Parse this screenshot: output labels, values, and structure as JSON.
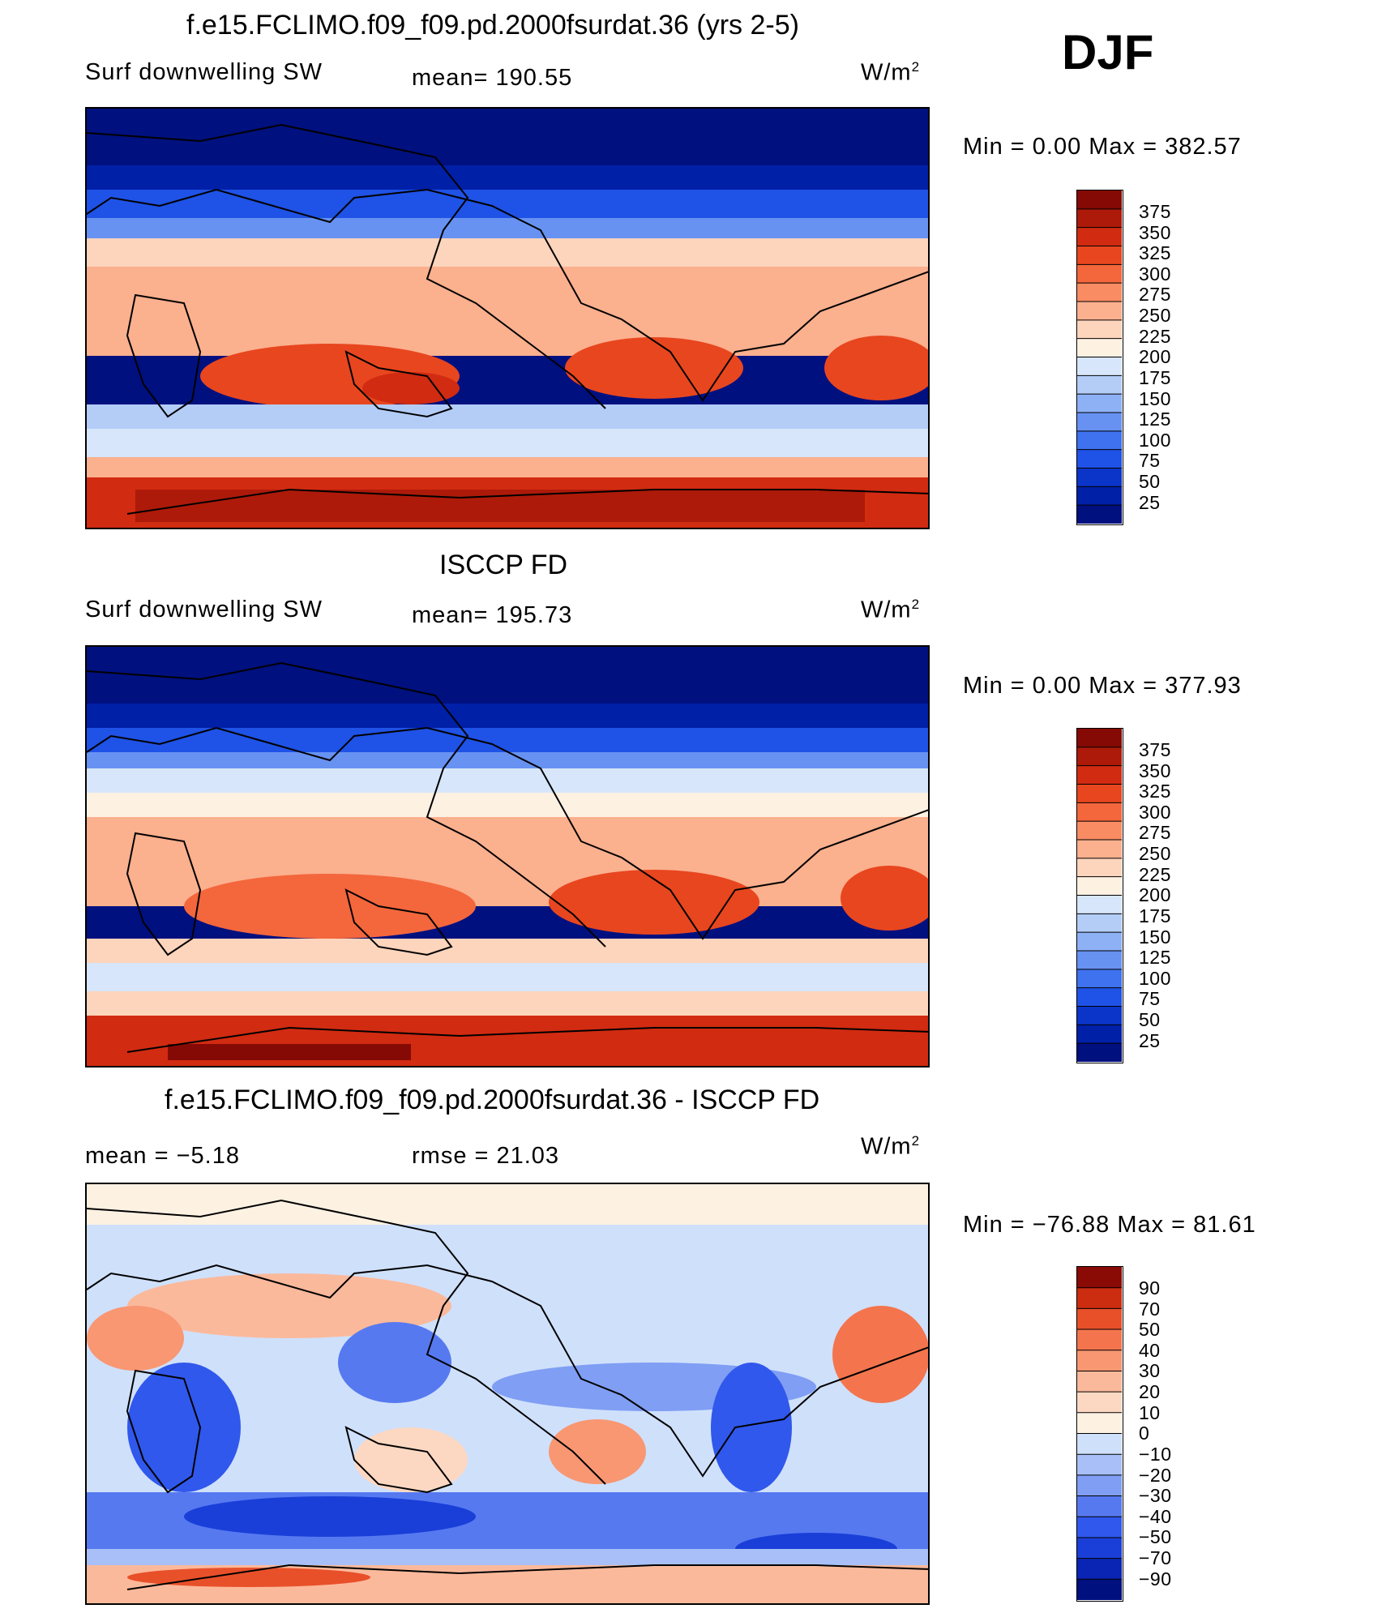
{
  "season": "DJF",
  "colors": {
    "seq_levels": [
      "#00107f",
      "#0020a8",
      "#0a35c8",
      "#1f52e6",
      "#3f72ee",
      "#6792f2",
      "#8eb1f5",
      "#b3cdf7",
      "#d7e6fa",
      "#fdf1e2",
      "#fdd4bc",
      "#fbb08e",
      "#f98c63",
      "#f4663c",
      "#e8461f",
      "#d12b11",
      "#ad1a09",
      "#850a05"
    ],
    "diff_levels": [
      "#00107f",
      "#0a25b3",
      "#1a3fd8",
      "#3058ec",
      "#5679f0",
      "#7f9ef4",
      "#a8c0f7",
      "#cfe0fb",
      "#fdf1e2",
      "#fcd8c2",
      "#fbb99b",
      "#f89772",
      "#f4754d",
      "#e8502a",
      "#cc2d10",
      "#8a0a05"
    ],
    "land_outline": "#000000"
  },
  "panels": [
    {
      "title": "f.e15.FCLIMO.f09_f09.pd.2000fsurdat.36 (yrs 2-5)",
      "left_label": "Surf downwelling SW",
      "center_label": "mean= 190.55",
      "units_label": "W/m",
      "units_exp": "2",
      "minmax": "Min =    0.00  Max  =  382.57",
      "min": 0.0,
      "max": 382.57,
      "mean": 190.55,
      "colorbar_ticks": [
        "375",
        "350",
        "325",
        "300",
        "275",
        "250",
        "225",
        "200",
        "175",
        "150",
        "125",
        "100",
        "75",
        "50",
        "25"
      ]
    },
    {
      "title": "ISCCP FD",
      "left_label": "Surf downwelling SW",
      "center_label": "mean= 195.73",
      "units_label": "W/m",
      "units_exp": "2",
      "minmax": "Min =    0.00  Max  =  377.93",
      "min": 0.0,
      "max": 377.93,
      "mean": 195.73,
      "colorbar_ticks": [
        "375",
        "350",
        "325",
        "300",
        "275",
        "250",
        "225",
        "200",
        "175",
        "150",
        "125",
        "100",
        "75",
        "50",
        "25"
      ]
    },
    {
      "title": "f.e15.FCLIMO.f09_f09.pd.2000fsurdat.36 - ISCCP FD",
      "left_label": "mean =    −5.18",
      "center_label": "rmse =    21.03",
      "units_label": "W/m",
      "units_exp": "2",
      "minmax": "Min = −76.88  Max =    81.61",
      "min": -76.88,
      "max": 81.61,
      "mean": -5.18,
      "rmse": 21.03,
      "colorbar_ticks": [
        "90",
        "70",
        "50",
        "40",
        "30",
        "20",
        "10",
        "0",
        "−10",
        "−20",
        "−30",
        "−40",
        "−50",
        "−70",
        "−90"
      ]
    }
  ]
}
